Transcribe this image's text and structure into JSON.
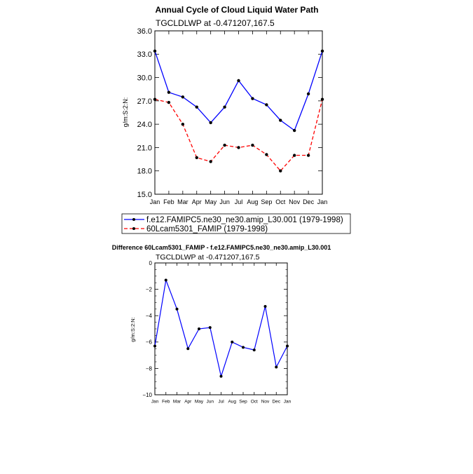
{
  "chart_data": [
    {
      "type": "line",
      "title": "Annual Cycle of Cloud Liquid Water Path",
      "subtitle": "TGCLDLWP  at  -0.471207,167.5",
      "ylabel": "g/m:S:2:N:",
      "xlabel": "",
      "categories": [
        "Jan",
        "Feb",
        "Mar",
        "Apr",
        "May",
        "Jun",
        "Jul",
        "Aug",
        "Sep",
        "Oct",
        "Nov",
        "Dec",
        "Jan"
      ],
      "ylim": [
        15.0,
        36.0
      ],
      "yticks": [
        "15.0",
        "18.0",
        "21.0",
        "24.0",
        "27.0",
        "30.0",
        "33.0",
        "36.0"
      ],
      "grid": false,
      "legend_position": "bottom",
      "series": [
        {
          "name": "f.e12.FAMIPC5.ne30_ne30.amip_L30.001 (1979-1998)",
          "color": "#0000ff",
          "dash": "solid",
          "values": [
            33.4,
            28.1,
            27.5,
            26.2,
            24.2,
            26.2,
            29.6,
            27.3,
            26.5,
            24.5,
            23.2,
            27.9,
            33.4
          ]
        },
        {
          "name": "60Lcam5301_FAMIP (1979-1998)",
          "color": "#ff0000",
          "dash": "dashed",
          "values": [
            27.2,
            26.8,
            24.0,
            19.7,
            19.2,
            21.3,
            21.0,
            21.3,
            20.1,
            18.0,
            20.0,
            20.0,
            27.2
          ]
        }
      ]
    },
    {
      "type": "line",
      "title": "Difference 60Lcam5301_FAMIP - f.e12.FAMIPC5.ne30_ne30.amip_L30.001",
      "subtitle": "TGCLDLWP  at  -0.471207,167.5",
      "ylabel": "g/m:S:2:N:",
      "xlabel": "",
      "categories": [
        "Jan",
        "Feb",
        "Mar",
        "Apr",
        "May",
        "Jun",
        "Jul",
        "Aug",
        "Sep",
        "Oct",
        "Nov",
        "Dec",
        "Jan"
      ],
      "ylim": [
        -10,
        0
      ],
      "yticks": [
        "−10",
        "−8",
        "−6",
        "−4",
        "−2",
        "0"
      ],
      "grid": false,
      "series": [
        {
          "name": "Difference",
          "color": "#0000ff",
          "dash": "solid",
          "values": [
            -6.3,
            -1.3,
            -3.5,
            -6.5,
            -5.0,
            -4.9,
            -8.6,
            -6.0,
            -6.4,
            -6.6,
            -3.3,
            -7.9,
            -6.3
          ]
        }
      ]
    }
  ]
}
